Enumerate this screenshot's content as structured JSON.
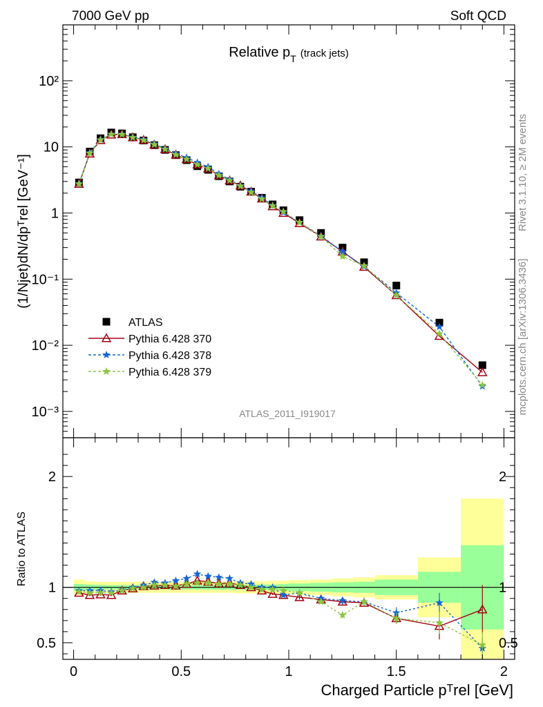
{
  "header": {
    "left": "7000 GeV pp",
    "right": "Soft QCD"
  },
  "side": {
    "rivet": "Rivet 3.1.10, ≥ 2M events",
    "mcplots": "mcplots.cern.ch [arXiv:1306.3436]"
  },
  "chart_data": [
    {
      "type": "scatter",
      "title_main": "Relative p",
      "title_sub": "T",
      "title_extra": "(track jets)",
      "ylabel": "(1/Njet)dN/dpᵀrel [GeV⁻¹]",
      "yscale": "log",
      "ylim": [
        0.0004,
        700
      ],
      "xlim": [
        -0.05,
        2.05
      ],
      "analysis_tag": "ATLAS_2011_I919017",
      "ytick_labels": [
        "10⁻³",
        "10⁻²",
        "10⁻¹",
        "1",
        "10",
        "10²"
      ],
      "x": [
        0.025,
        0.075,
        0.125,
        0.175,
        0.225,
        0.275,
        0.325,
        0.375,
        0.425,
        0.475,
        0.525,
        0.575,
        0.625,
        0.675,
        0.725,
        0.775,
        0.825,
        0.875,
        0.925,
        0.975,
        1.05,
        1.15,
        1.25,
        1.35,
        1.5,
        1.7,
        1.9
      ],
      "series": [
        {
          "name": "ATLAS",
          "color": "#000000",
          "marker": "square",
          "values": [
            2.9,
            8.5,
            13.5,
            16.5,
            16.0,
            14.0,
            12.5,
            10.6,
            9.0,
            7.5,
            6.3,
            5.1,
            4.5,
            3.6,
            3.0,
            2.5,
            2.1,
            1.7,
            1.35,
            1.1,
            0.78,
            0.5,
            0.3,
            0.18,
            0.08,
            0.022,
            0.005
          ]
        },
        {
          "name": "Pythia 6.428 370",
          "color": "#a00010",
          "marker": "triangle",
          "dash": "",
          "values": [
            2.75,
            7.9,
            12.6,
            15.3,
            15.5,
            13.9,
            12.7,
            10.8,
            9.2,
            7.6,
            6.5,
            5.4,
            4.7,
            3.7,
            3.1,
            2.6,
            2.1,
            1.65,
            1.26,
            1.0,
            0.7,
            0.44,
            0.26,
            0.153,
            0.057,
            0.0138,
            0.0039
          ]
        },
        {
          "name": "Pythia 6.428 378",
          "color": "#1565d8",
          "marker": "star",
          "dash": "4,3",
          "values": [
            2.8,
            8.2,
            12.9,
            15.6,
            15.6,
            14.0,
            12.9,
            11.1,
            9.4,
            7.9,
            6.9,
            5.8,
            5.0,
            3.9,
            3.2,
            2.6,
            2.15,
            1.7,
            1.3,
            1.02,
            0.72,
            0.45,
            0.26,
            0.156,
            0.062,
            0.019,
            0.0024
          ]
        },
        {
          "name": "Pythia 6.428 379",
          "color": "#8cc63f",
          "marker": "star",
          "dash": "4,3",
          "values": [
            2.75,
            8.0,
            12.7,
            15.5,
            15.4,
            13.8,
            12.6,
            10.8,
            9.2,
            7.6,
            6.5,
            5.4,
            4.7,
            3.7,
            3.1,
            2.55,
            2.05,
            1.62,
            1.28,
            1.05,
            0.72,
            0.44,
            0.22,
            0.16,
            0.057,
            0.015,
            0.0025
          ]
        }
      ]
    },
    {
      "type": "scatter",
      "xlabel": "Charged Particle pᵀrel [GeV]",
      "ylabel": "Ratio to ATLAS",
      "xlim": [
        -0.05,
        2.05
      ],
      "ylim": [
        0.35,
        2.35
      ],
      "yticks": [
        0.5,
        1,
        2
      ],
      "ytick_labels": [
        "0.5",
        "1",
        "2"
      ],
      "xticks": [
        0,
        0.5,
        1,
        1.5,
        2
      ],
      "xtick_labels": [
        "0",
        "0.5",
        "1",
        "1.5",
        "2"
      ],
      "bin_edges": [
        0.0,
        0.05,
        0.1,
        0.15,
        0.2,
        0.25,
        0.3,
        0.35,
        0.4,
        0.45,
        0.5,
        0.55,
        0.6,
        0.65,
        0.7,
        0.75,
        0.8,
        0.85,
        0.9,
        0.95,
        1.0,
        1.1,
        1.2,
        1.3,
        1.4,
        1.6,
        1.8,
        2.0
      ],
      "band_stat": [
        0.03,
        0.025,
        0.022,
        0.02,
        0.02,
        0.02,
        0.02,
        0.02,
        0.02,
        0.02,
        0.02,
        0.02,
        0.02,
        0.02,
        0.02,
        0.022,
        0.022,
        0.025,
        0.025,
        0.03,
        0.035,
        0.04,
        0.045,
        0.05,
        0.07,
        0.14,
        0.38
      ],
      "band_total": [
        0.07,
        0.055,
        0.05,
        0.05,
        0.05,
        0.05,
        0.05,
        0.05,
        0.05,
        0.05,
        0.05,
        0.05,
        0.05,
        0.05,
        0.05,
        0.055,
        0.055,
        0.055,
        0.06,
        0.06,
        0.065,
        0.07,
        0.08,
        0.09,
        0.11,
        0.27,
        0.8
      ],
      "x": [
        0.025,
        0.075,
        0.125,
        0.175,
        0.225,
        0.275,
        0.325,
        0.375,
        0.425,
        0.475,
        0.525,
        0.575,
        0.625,
        0.675,
        0.725,
        0.775,
        0.825,
        0.875,
        0.925,
        0.975,
        1.05,
        1.15,
        1.25,
        1.35,
        1.5,
        1.7,
        1.9
      ],
      "series": [
        {
          "name": "Pythia 6.428 370",
          "color": "#a00010",
          "marker": "triangle",
          "dash": "",
          "values": [
            0.95,
            0.93,
            0.935,
            0.93,
            0.97,
            0.99,
            1.01,
            1.015,
            1.02,
            1.015,
            1.03,
            1.06,
            1.05,
            1.035,
            1.04,
            1.02,
            1.0,
            0.97,
            0.94,
            0.93,
            0.91,
            0.89,
            0.87,
            0.86,
            0.72,
            0.65,
            0.8
          ],
          "errors": [
            0.01,
            0.01,
            0.01,
            0.01,
            0.01,
            0.01,
            0.01,
            0.01,
            0.01,
            0.01,
            0.01,
            0.01,
            0.01,
            0.01,
            0.01,
            0.01,
            0.01,
            0.01,
            0.01,
            0.01,
            0.02,
            0.02,
            0.03,
            0.03,
            0.05,
            0.12,
            0.22
          ]
        },
        {
          "name": "Pythia 6.428 378",
          "color": "#1565d8",
          "marker": "star",
          "dash": "3,3",
          "values": [
            0.97,
            0.97,
            0.97,
            0.96,
            0.975,
            1.0,
            1.02,
            1.045,
            1.04,
            1.06,
            1.08,
            1.12,
            1.1,
            1.09,
            1.08,
            1.04,
            1.03,
            1.0,
            1.0,
            0.93,
            0.95,
            0.9,
            0.88,
            0.87,
            0.77,
            0.86,
            0.45
          ],
          "errors": [
            0.01,
            0.01,
            0.01,
            0.01,
            0.01,
            0.01,
            0.01,
            0.01,
            0.01,
            0.01,
            0.01,
            0.01,
            0.01,
            0.01,
            0.01,
            0.01,
            0.01,
            0.01,
            0.02,
            0.02,
            0.02,
            0.02,
            0.03,
            0.04,
            0.05,
            0.09,
            0.1
          ]
        },
        {
          "name": "Pythia 6.428 379",
          "color": "#8cc63f",
          "marker": "star",
          "dash": "3,3",
          "values": [
            0.96,
            0.95,
            0.95,
            0.95,
            0.97,
            0.99,
            1.0,
            1.02,
            1.02,
            1.01,
            1.03,
            1.04,
            1.04,
            1.03,
            1.03,
            1.02,
            1.0,
            0.98,
            0.98,
            0.97,
            0.95,
            0.87,
            0.75,
            0.87,
            0.72,
            0.68,
            0.48
          ],
          "errors": [
            0.01,
            0.01,
            0.01,
            0.01,
            0.01,
            0.01,
            0.01,
            0.01,
            0.01,
            0.01,
            0.01,
            0.01,
            0.01,
            0.01,
            0.01,
            0.01,
            0.01,
            0.01,
            0.02,
            0.02,
            0.02,
            0.02,
            0.03,
            0.04,
            0.05,
            0.1,
            0.12
          ]
        }
      ]
    }
  ],
  "colors": {
    "band_inner": "#99ff99",
    "band_outer": "#ffff99",
    "frame": "#000000",
    "watermark": "#888888"
  }
}
